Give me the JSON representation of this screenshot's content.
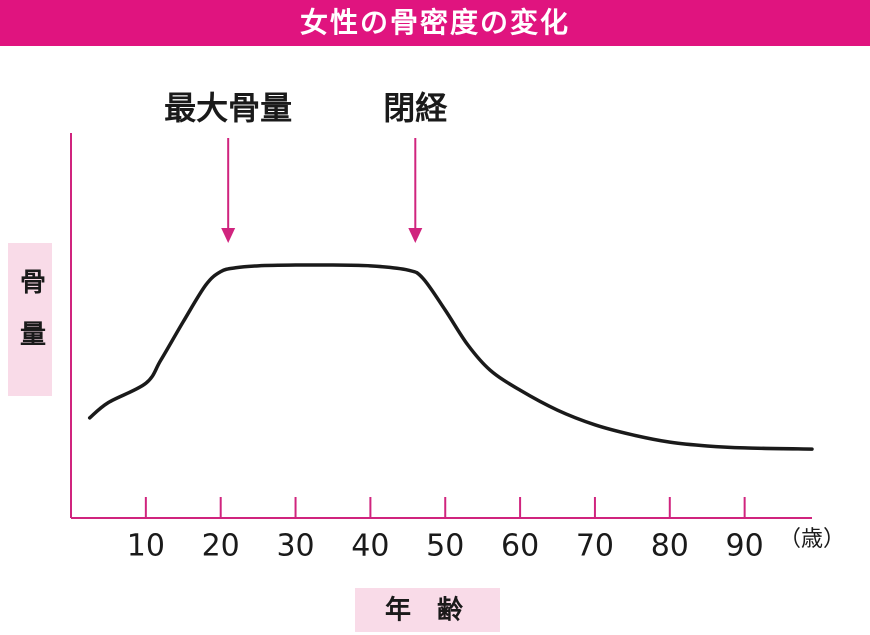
{
  "chart_data": {
    "type": "line",
    "title": "女性の骨密度の変化",
    "x_label": "年齢",
    "y_label": "骨量",
    "x_unit": "（歳）",
    "x": [
      2.5,
      5,
      10,
      12,
      15,
      18,
      20,
      22,
      25,
      30,
      35,
      40,
      45,
      47,
      50,
      53,
      56,
      60,
      65,
      70,
      75,
      80,
      85,
      90,
      99
    ],
    "values": [
      26,
      30,
      35,
      41,
      51,
      60.5,
      64,
      65,
      65.5,
      65.7,
      65.7,
      65.5,
      64.4,
      62.3,
      54,
      45,
      38.4,
      33.2,
      28,
      24.2,
      21.6,
      19.7,
      18.7,
      18.2,
      17.9
    ],
    "color": "#1a1a1a",
    "axis_color": "#d0247e",
    "xlim": [
      0,
      99
    ],
    "ylim": [
      0,
      100
    ],
    "xticks": [
      10,
      20,
      30,
      40,
      50,
      60,
      70,
      80,
      90
    ],
    "annotations": [
      {
        "text": "最大骨量",
        "x": 21
      },
      {
        "text": "閉経",
        "x": 46
      }
    ]
  }
}
